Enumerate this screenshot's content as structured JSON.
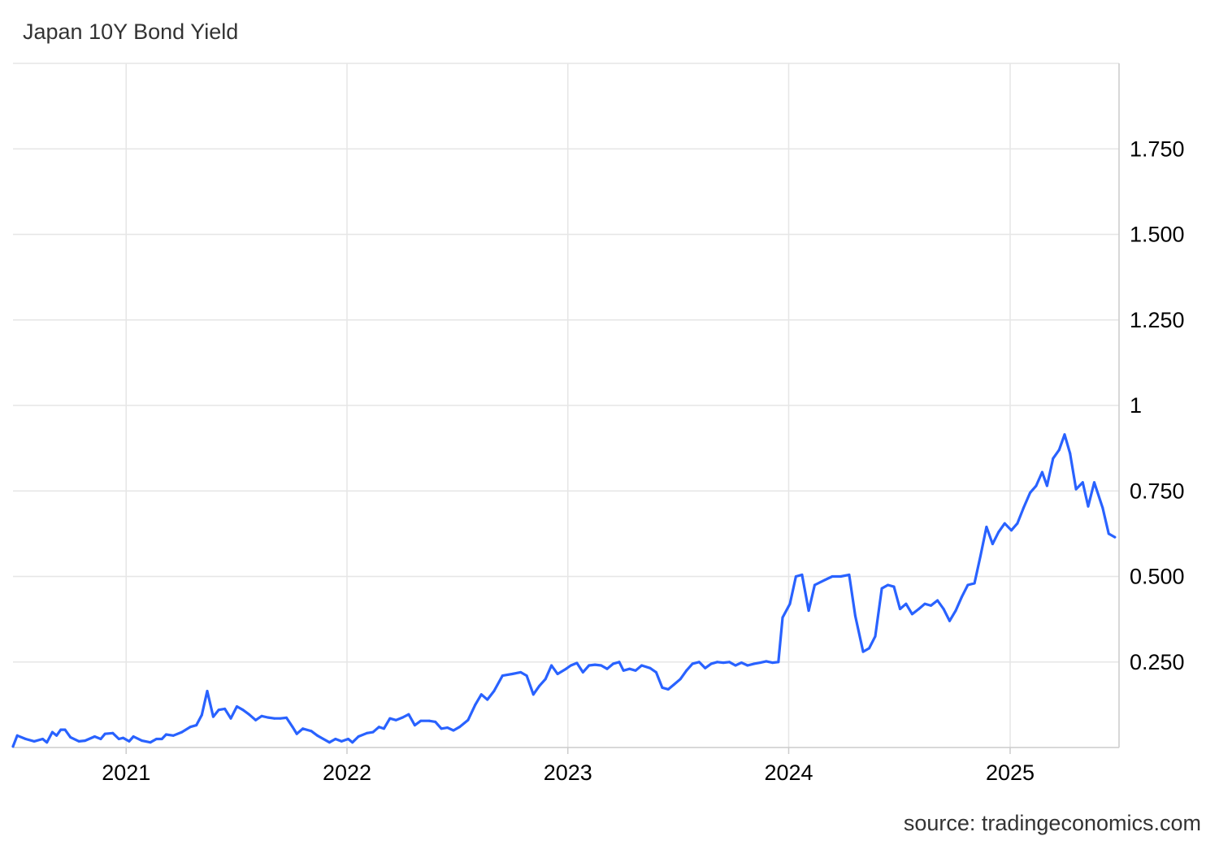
{
  "chart_title": "Japan 10Y Bond Yield",
  "source": "source: tradingeconomics.com",
  "colors": {
    "line": "#2962ff",
    "grid": "#e6e6e6",
    "axis": "#cccccc",
    "text": "#000000"
  },
  "chart_data": {
    "type": "line",
    "title": "Japan 10Y Bond Yield",
    "xlabel": "",
    "ylabel": "",
    "x_range": [
      "2020-06-28",
      "2025-06-30"
    ],
    "ylim": [
      0,
      2
    ],
    "grid": true,
    "legend": "none",
    "x_ticks": [
      {
        "date": "2021-01-01",
        "label": "2021"
      },
      {
        "date": "2022-01-01",
        "label": "2022"
      },
      {
        "date": "2023-01-01",
        "label": "2023"
      },
      {
        "date": "2024-01-01",
        "label": "2024"
      },
      {
        "date": "2025-01-01",
        "label": "2025"
      }
    ],
    "y_ticks": [
      {
        "value": 0.25,
        "label": "0.250"
      },
      {
        "value": 0.5,
        "label": "0.500"
      },
      {
        "value": 0.75,
        "label": "0.750"
      },
      {
        "value": 1.0,
        "label": "1"
      },
      {
        "value": 1.25,
        "label": "1.250"
      },
      {
        "value": 1.5,
        "label": "1.500"
      },
      {
        "value": 1.75,
        "label": "1.750"
      }
    ],
    "series": [
      {
        "values": [
          [
            "2020-06-28",
            0.003
          ],
          [
            "2020-07-05",
            0.035
          ],
          [
            "2020-07-19",
            0.025
          ],
          [
            "2020-08-02",
            0.018
          ],
          [
            "2020-08-16",
            0.025
          ],
          [
            "2020-08-23",
            0.015
          ],
          [
            "2020-09-01",
            0.045
          ],
          [
            "2020-09-08",
            0.035
          ],
          [
            "2020-09-15",
            0.052
          ],
          [
            "2020-09-22",
            0.052
          ],
          [
            "2020-10-01",
            0.03
          ],
          [
            "2020-10-15",
            0.018
          ],
          [
            "2020-10-25",
            0.02
          ],
          [
            "2020-11-10",
            0.032
          ],
          [
            "2020-11-20",
            0.025
          ],
          [
            "2020-11-27",
            0.04
          ],
          [
            "2020-12-10",
            0.042
          ],
          [
            "2020-12-20",
            0.025
          ],
          [
            "2020-12-27",
            0.028
          ],
          [
            "2021-01-06",
            0.018
          ],
          [
            "2021-01-13",
            0.032
          ],
          [
            "2021-01-27",
            0.02
          ],
          [
            "2021-02-10",
            0.015
          ],
          [
            "2021-02-20",
            0.025
          ],
          [
            "2021-03-01",
            0.025
          ],
          [
            "2021-03-08",
            0.038
          ],
          [
            "2021-03-20",
            0.035
          ],
          [
            "2021-04-03",
            0.045
          ],
          [
            "2021-04-17",
            0.06
          ],
          [
            "2021-04-27",
            0.065
          ],
          [
            "2021-05-06",
            0.095
          ],
          [
            "2021-05-15",
            0.165
          ],
          [
            "2021-05-25",
            0.09
          ],
          [
            "2021-06-03",
            0.11
          ],
          [
            "2021-06-13",
            0.113
          ],
          [
            "2021-06-23",
            0.085
          ],
          [
            "2021-07-03",
            0.12
          ],
          [
            "2021-07-13",
            0.11
          ],
          [
            "2021-07-23",
            0.097
          ],
          [
            "2021-08-03",
            0.08
          ],
          [
            "2021-08-13",
            0.092
          ],
          [
            "2021-08-23",
            0.088
          ],
          [
            "2021-09-03",
            0.085
          ],
          [
            "2021-09-13",
            0.085
          ],
          [
            "2021-09-23",
            0.087
          ],
          [
            "2021-10-03",
            0.06
          ],
          [
            "2021-10-10",
            0.04
          ],
          [
            "2021-10-20",
            0.055
          ],
          [
            "2021-11-03",
            0.048
          ],
          [
            "2021-11-13",
            0.035
          ],
          [
            "2021-11-23",
            0.025
          ],
          [
            "2021-12-03",
            0.015
          ],
          [
            "2021-12-13",
            0.025
          ],
          [
            "2021-12-23",
            0.018
          ],
          [
            "2022-01-03",
            0.025
          ],
          [
            "2022-01-10",
            0.015
          ],
          [
            "2022-01-20",
            0.032
          ],
          [
            "2022-02-03",
            0.042
          ],
          [
            "2022-02-13",
            0.045
          ],
          [
            "2022-02-23",
            0.06
          ],
          [
            "2022-03-03",
            0.055
          ],
          [
            "2022-03-13",
            0.085
          ],
          [
            "2022-03-23",
            0.08
          ],
          [
            "2022-04-03",
            0.088
          ],
          [
            "2022-04-13",
            0.097
          ],
          [
            "2022-04-23",
            0.065
          ],
          [
            "2022-05-03",
            0.078
          ],
          [
            "2022-05-17",
            0.078
          ],
          [
            "2022-05-27",
            0.075
          ],
          [
            "2022-06-06",
            0.055
          ],
          [
            "2022-06-16",
            0.058
          ],
          [
            "2022-06-26",
            0.05
          ],
          [
            "2022-07-06",
            0.06
          ],
          [
            "2022-07-20",
            0.08
          ],
          [
            "2022-08-01",
            0.125
          ],
          [
            "2022-08-11",
            0.155
          ],
          [
            "2022-08-21",
            0.14
          ],
          [
            "2022-09-01",
            0.165
          ],
          [
            "2022-09-15",
            0.21
          ],
          [
            "2022-10-01",
            0.215
          ],
          [
            "2022-10-15",
            0.22
          ],
          [
            "2022-10-25",
            0.21
          ],
          [
            "2022-11-05",
            0.155
          ],
          [
            "2022-11-15",
            0.18
          ],
          [
            "2022-11-25",
            0.2
          ],
          [
            "2022-12-05",
            0.24
          ],
          [
            "2022-12-15",
            0.215
          ],
          [
            "2022-12-29",
            0.23
          ],
          [
            "2023-01-06",
            0.24
          ],
          [
            "2023-01-16",
            0.247
          ],
          [
            "2023-01-26",
            0.22
          ],
          [
            "2023-02-05",
            0.24
          ],
          [
            "2023-02-15",
            0.242
          ],
          [
            "2023-02-25",
            0.24
          ],
          [
            "2023-03-07",
            0.23
          ],
          [
            "2023-03-17",
            0.245
          ],
          [
            "2023-03-27",
            0.25
          ],
          [
            "2023-04-03",
            0.225
          ],
          [
            "2023-04-13",
            0.23
          ],
          [
            "2023-04-23",
            0.225
          ],
          [
            "2023-05-03",
            0.24
          ],
          [
            "2023-05-17",
            0.232
          ],
          [
            "2023-05-27",
            0.22
          ],
          [
            "2023-06-06",
            0.175
          ],
          [
            "2023-06-16",
            0.17
          ],
          [
            "2023-06-26",
            0.185
          ],
          [
            "2023-07-06",
            0.2
          ],
          [
            "2023-07-16",
            0.225
          ],
          [
            "2023-07-26",
            0.245
          ],
          [
            "2023-08-06",
            0.25
          ],
          [
            "2023-08-16",
            0.232
          ],
          [
            "2023-08-26",
            0.245
          ],
          [
            "2023-09-05",
            0.25
          ],
          [
            "2023-09-15",
            0.248
          ],
          [
            "2023-09-25",
            0.25
          ],
          [
            "2023-10-05",
            0.24
          ],
          [
            "2023-10-15",
            0.248
          ],
          [
            "2023-10-25",
            0.24
          ],
          [
            "2023-11-05",
            0.245
          ],
          [
            "2023-11-15",
            0.248
          ],
          [
            "2023-11-25",
            0.252
          ],
          [
            "2023-12-05",
            0.248
          ],
          [
            "2023-12-15",
            0.25
          ],
          [
            "2023-12-22",
            0.38
          ],
          [
            "2024-01-03",
            0.42
          ],
          [
            "2024-01-13",
            0.5
          ],
          [
            "2024-01-23",
            0.505
          ],
          [
            "2024-02-03",
            0.4
          ],
          [
            "2024-02-13",
            0.475
          ],
          [
            "2024-03-01",
            0.49
          ],
          [
            "2024-03-13",
            0.5
          ],
          [
            "2024-03-27",
            0.5
          ],
          [
            "2024-04-10",
            0.505
          ],
          [
            "2024-04-20",
            0.385
          ],
          [
            "2024-05-03",
            0.28
          ],
          [
            "2024-05-13",
            0.29
          ],
          [
            "2024-05-23",
            0.325
          ],
          [
            "2024-06-03",
            0.465
          ],
          [
            "2024-06-13",
            0.475
          ],
          [
            "2024-06-23",
            0.47
          ],
          [
            "2024-07-03",
            0.405
          ],
          [
            "2024-07-13",
            0.42
          ],
          [
            "2024-07-23",
            0.39
          ],
          [
            "2024-08-03",
            0.405
          ],
          [
            "2024-08-13",
            0.42
          ],
          [
            "2024-08-23",
            0.415
          ],
          [
            "2024-09-03",
            0.43
          ],
          [
            "2024-09-13",
            0.405
          ],
          [
            "2024-09-23",
            0.37
          ],
          [
            "2024-10-03",
            0.4
          ],
          [
            "2024-10-13",
            0.44
          ],
          [
            "2024-10-23",
            0.475
          ],
          [
            "2024-11-03",
            0.48
          ],
          [
            "2024-11-13",
            0.56
          ],
          [
            "2024-11-23",
            0.645
          ],
          [
            "2024-12-03",
            0.595
          ],
          [
            "2024-12-13",
            0.63
          ],
          [
            "2024-12-23",
            0.655
          ],
          [
            "2025-01-03",
            0.635
          ],
          [
            "2025-01-13",
            0.655
          ],
          [
            "2025-01-23",
            0.7
          ],
          [
            "2025-02-03",
            0.745
          ],
          [
            "2025-02-13",
            0.765
          ],
          [
            "2025-02-23",
            0.805
          ],
          [
            "2025-03-03",
            0.765
          ],
          [
            "2025-03-13",
            0.845
          ],
          [
            "2025-03-23",
            0.87
          ],
          [
            "2025-04-01",
            0.915
          ],
          [
            "2025-04-10",
            0.86
          ],
          [
            "2025-04-20",
            0.755
          ],
          [
            "2025-05-01",
            0.775
          ],
          [
            "2025-05-10",
            0.705
          ],
          [
            "2025-05-20",
            0.775
          ],
          [
            "2025-06-03",
            0.7
          ],
          [
            "2025-06-13",
            0.625
          ],
          [
            "2025-06-23",
            0.615
          ]
        ]
      }
    ]
  }
}
